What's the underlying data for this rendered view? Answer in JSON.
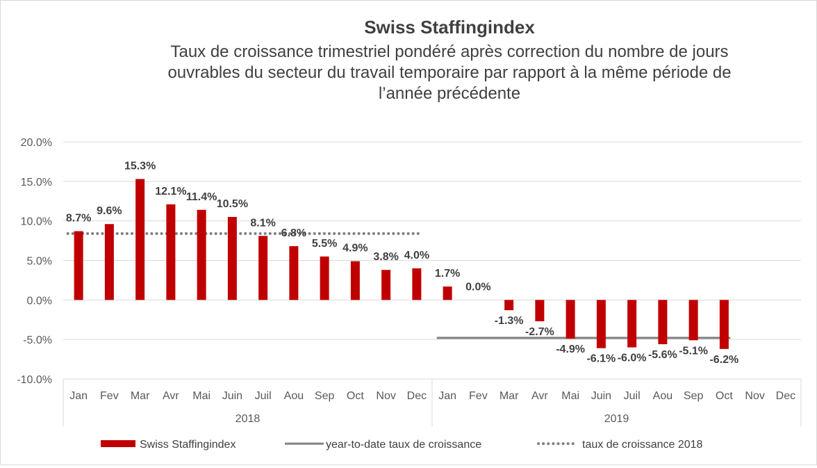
{
  "chart_data": {
    "type": "bar",
    "title": "Swiss Staffingindex",
    "subtitle_lines": [
      "Taux de croissance trimestriel pondéré après correction du nombre de jours",
      "ouvrables du secteur du travail temporaire par rapport à la même période de",
      "l’année précédente"
    ],
    "ylim": [
      -10,
      20
    ],
    "yticks": [
      20,
      15,
      10,
      5,
      0,
      -5,
      -10
    ],
    "ytick_labels": [
      "20.0%",
      "15.0%",
      "10.0%",
      "5.0%",
      "0.0%",
      "-5.0%",
      "-10.0%"
    ],
    "groups": [
      {
        "label": "2018",
        "categories": [
          "Jan",
          "Fev",
          "Mar",
          "Avr",
          "Mai",
          "Juin",
          "Juil",
          "Aou",
          "Sep",
          "Oct",
          "Nov",
          "Dec"
        ]
      },
      {
        "label": "2019",
        "categories": [
          "Jan",
          "Fev",
          "Mar",
          "Avr",
          "Mai",
          "Juin",
          "Juil",
          "Aou",
          "Sep",
          "Oct",
          "Nov",
          "Dec"
        ]
      }
    ],
    "series": [
      {
        "name": "Swiss Staffingindex",
        "kind": "bar",
        "color": "#c00000",
        "values": [
          8.7,
          9.6,
          15.3,
          12.1,
          11.4,
          10.5,
          8.1,
          6.8,
          5.5,
          4.9,
          3.8,
          4.0,
          1.7,
          0.0,
          -1.3,
          -2.7,
          -4.9,
          -6.1,
          -6.0,
          -5.6,
          -5.1,
          -6.2,
          null,
          null
        ],
        "labels": [
          "8.7%",
          "9.6%",
          "15.3%",
          "12.1%",
          "11.4%",
          "10.5%",
          "8.1%",
          "6.8%",
          "5.5%",
          "4.9%",
          "3.8%",
          "4.0%",
          "1.7%",
          "0.0%",
          "-1.3%",
          "-2.7%",
          "-4.9%",
          "-6.1%",
          "-6.0%",
          "-5.6%",
          "-5.1%",
          "-6.2%",
          null,
          null
        ]
      },
      {
        "name": "year-to-date taux de croissance",
        "kind": "line",
        "color": "#808080",
        "style": "solid",
        "value": -4.8,
        "from_index": 12,
        "to_index": 21
      },
      {
        "name": "taux de croissance 2018",
        "kind": "line",
        "color": "#808080",
        "style": "dotted",
        "value": 8.4,
        "from_index": 0,
        "to_index": 11
      }
    ],
    "grid": true,
    "legend_position": "bottom"
  }
}
